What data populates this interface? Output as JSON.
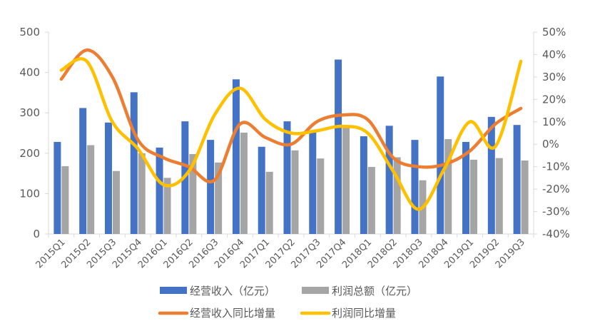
{
  "chart_data": {
    "type": "bar",
    "categories": [
      "2015Q1",
      "2015Q2",
      "2015Q3",
      "2015Q4",
      "2016Q1",
      "2016Q2",
      "2016Q3",
      "2016Q4",
      "2017Q1",
      "2017Q2",
      "2017Q3",
      "2017Q4",
      "2018Q1",
      "2018Q2",
      "2018Q3",
      "2018Q4",
      "2019Q1",
      "2019Q2",
      "2019Q3"
    ],
    "ylim": [
      0,
      500
    ],
    "yticks": [
      0,
      100,
      200,
      300,
      400,
      500
    ],
    "y2lim": [
      -40,
      50
    ],
    "y2ticks": [
      -40,
      -30,
      -20,
      -10,
      0,
      10,
      20,
      30,
      40,
      50
    ],
    "y2tick_labels": [
      "-40%",
      "-30%",
      "-20%",
      "-10%",
      "0%",
      "10%",
      "20%",
      "30%",
      "40%",
      "50%"
    ],
    "grid": false,
    "legend_position": "bottom",
    "series": [
      {
        "name": "经营收入（亿元）",
        "kind": "bar",
        "axis": "left",
        "color": "#4472C4",
        "values": [
          228,
          312,
          276,
          351,
          214,
          279,
          233,
          383,
          216,
          279,
          256,
          432,
          242,
          268,
          233,
          390,
          228,
          290,
          270
        ]
      },
      {
        "name": "利润总额（亿元）",
        "kind": "bar",
        "axis": "left",
        "color": "#A5A5A5",
        "values": [
          168,
          220,
          156,
          200,
          139,
          198,
          177,
          251,
          154,
          207,
          187,
          267,
          166,
          190,
          133,
          235,
          184,
          188,
          182
        ]
      },
      {
        "name": "经营收入同比增量",
        "kind": "line",
        "axis": "right",
        "color": "#ED7D31",
        "values": [
          29,
          42,
          30,
          2,
          -6,
          -10,
          -16,
          9,
          3,
          0,
          10,
          13,
          11,
          -6,
          -10,
          -9,
          -3,
          9,
          16
        ]
      },
      {
        "name": "利润同比增量",
        "kind": "line",
        "axis": "right",
        "color": "#FFC000",
        "values": [
          33,
          37,
          10,
          -2,
          -18,
          -12,
          13,
          25,
          11,
          5,
          6,
          8,
          5,
          -12,
          -29,
          -11,
          10,
          -1,
          37
        ]
      }
    ]
  }
}
